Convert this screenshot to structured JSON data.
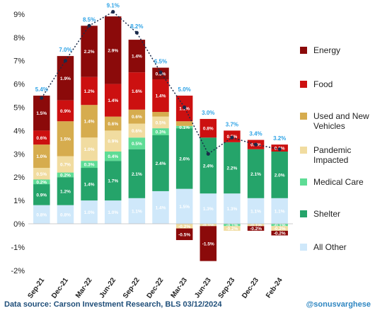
{
  "chart_data": {
    "type": "bar",
    "stacked": true,
    "categories": [
      "Sep-21",
      "Dec-21",
      "Mar-22",
      "Jun-22",
      "Sep-22",
      "Dec-22",
      "Mar-23",
      "Jun-23",
      "Sep-23",
      "Dec-23",
      "Feb-24"
    ],
    "ylim": [
      -2,
      9
    ],
    "yticks": [
      "-2%",
      "-1%",
      "0%",
      "1%",
      "2%",
      "3%",
      "4%",
      "5%",
      "6%",
      "7%",
      "8%",
      "9%"
    ],
    "grid": false,
    "legend_position": "right",
    "series": [
      {
        "name": "All Other",
        "color": "#cfe8fa",
        "label_color": "#ffffff",
        "values": [
          0.8,
          0.8,
          1.0,
          1.0,
          1.1,
          1.4,
          1.5,
          1.3,
          1.3,
          1.1,
          1.1
        ],
        "labels": [
          "0.8%",
          "0.8%",
          "1.0%",
          "1.0%",
          "1.1%",
          "1.4%",
          "1.5%",
          "1.3%",
          "1.3%",
          "1.1%",
          "1.1%"
        ]
      },
      {
        "name": "Shelter",
        "color": "#25a46a",
        "label_color": "#ffffff",
        "values": [
          0.9,
          1.2,
          1.4,
          1.7,
          2.1,
          2.4,
          2.6,
          2.4,
          2.2,
          2.1,
          2.0
        ],
        "labels": [
          "0.9%",
          "1.2%",
          "1.4%",
          "1.7%",
          "2.1%",
          "2.4%",
          "2.6%",
          "2.4%",
          "2.2%",
          "2.1%",
          "2.0%"
        ]
      },
      {
        "name": "Medical Care",
        "color": "#5edc95",
        "label_color": "#ffffff",
        "values": [
          0.2,
          0.2,
          0.3,
          0.4,
          0.5,
          0.3,
          0.1,
          0.0,
          -0.1,
          0.0,
          -0.1
        ],
        "labels": [
          "0.2%",
          "0.2%",
          "0.3%",
          "0.4%",
          "0.5%",
          "0.3%",
          "0.1%",
          "0.0%",
          "-0.1%",
          "0.0%",
          "-0.1%"
        ]
      },
      {
        "name": "Pandemic Impacted",
        "color": "#f1dca0",
        "label_color": "#ffffff",
        "values": [
          0.5,
          0.7,
          1.0,
          0.9,
          0.6,
          0.5,
          -0.2,
          -0.1,
          -0.2,
          -0.1,
          -0.2
        ],
        "labels": [
          "0.5%",
          "0.7%",
          "1.0%",
          "0.9%",
          "0.6%",
          "0.5%",
          "-0.2%",
          "-0.1%",
          "-0.2%",
          "-0.1%",
          "-0.2%"
        ]
      },
      {
        "name": "Used and New Vehicles",
        "color": "#d6ac4e",
        "label_color": "#ffffff",
        "values": [
          1.0,
          1.5,
          1.4,
          0.6,
          0.6,
          0.2,
          0.2,
          0.0,
          0.0,
          0.0,
          0.0
        ],
        "labels": [
          "1.0%",
          "1.5%",
          "1.4%",
          "0.6%",
          "0.6%",
          "",
          "",
          "",
          "",
          "",
          ""
        ]
      },
      {
        "name": "Food",
        "color": "#cc1010",
        "label_color": "#ffffff",
        "values": [
          0.6,
          0.9,
          1.2,
          1.4,
          1.6,
          1.4,
          1.1,
          0.8,
          0.5,
          0.4,
          0.3
        ],
        "labels": [
          "0.6%",
          "0.9%",
          "1.2%",
          "1.4%",
          "1.6%",
          "1.4%",
          "1.1%",
          "0.8%",
          "0.5%",
          "0.4%",
          "0.3%"
        ]
      },
      {
        "name": "Energy",
        "color": "#8b0a0a",
        "label_color": "#ffffff",
        "values": [
          1.5,
          1.9,
          2.2,
          2.9,
          1.4,
          0.5,
          -0.5,
          -1.5,
          0.0,
          -0.2,
          -0.2
        ],
        "labels": [
          "1.5%",
          "1.9%",
          "2.2%",
          "2.9%",
          "1.4%",
          "0.5%",
          "-0.5%",
          "-1.5%",
          "",
          "-0.2%",
          "-0.2%"
        ]
      }
    ],
    "total_series": {
      "values": [
        5.4,
        7.0,
        8.5,
        9.1,
        8.2,
        6.5,
        5.0,
        3.0,
        3.7,
        3.4,
        3.2
      ],
      "labels": [
        "5.4%",
        "7.0%",
        "8.5%",
        "9.1%",
        "8.2%",
        "6.5%",
        "5.0%",
        "3.0%",
        "3.7%",
        "3.4%",
        "3.2%"
      ],
      "label_color": "#2ea3e6",
      "line_color": "#1a2a4a"
    },
    "legend_order": [
      "Energy",
      "Food",
      "Used and New Vehicles",
      "Pandemic Impacted",
      "Medical Care",
      "Shelter",
      "All Other"
    ],
    "legend_text": {
      "Energy": [
        "Energy"
      ],
      "Food": [
        "Food"
      ],
      "Used and New Vehicles": [
        "Used and New",
        "Vehicles"
      ],
      "Pandemic Impacted": [
        "Pandemic",
        "Impacted"
      ],
      "Medical Care": [
        "Medical Care"
      ],
      "Shelter": [
        "Shelter"
      ],
      "All Other": [
        "All Other"
      ]
    }
  },
  "footer": {
    "source": "Data source: Carson Investment Research, BLS   03/12/2024",
    "handle": "@sonusvarghese"
  }
}
